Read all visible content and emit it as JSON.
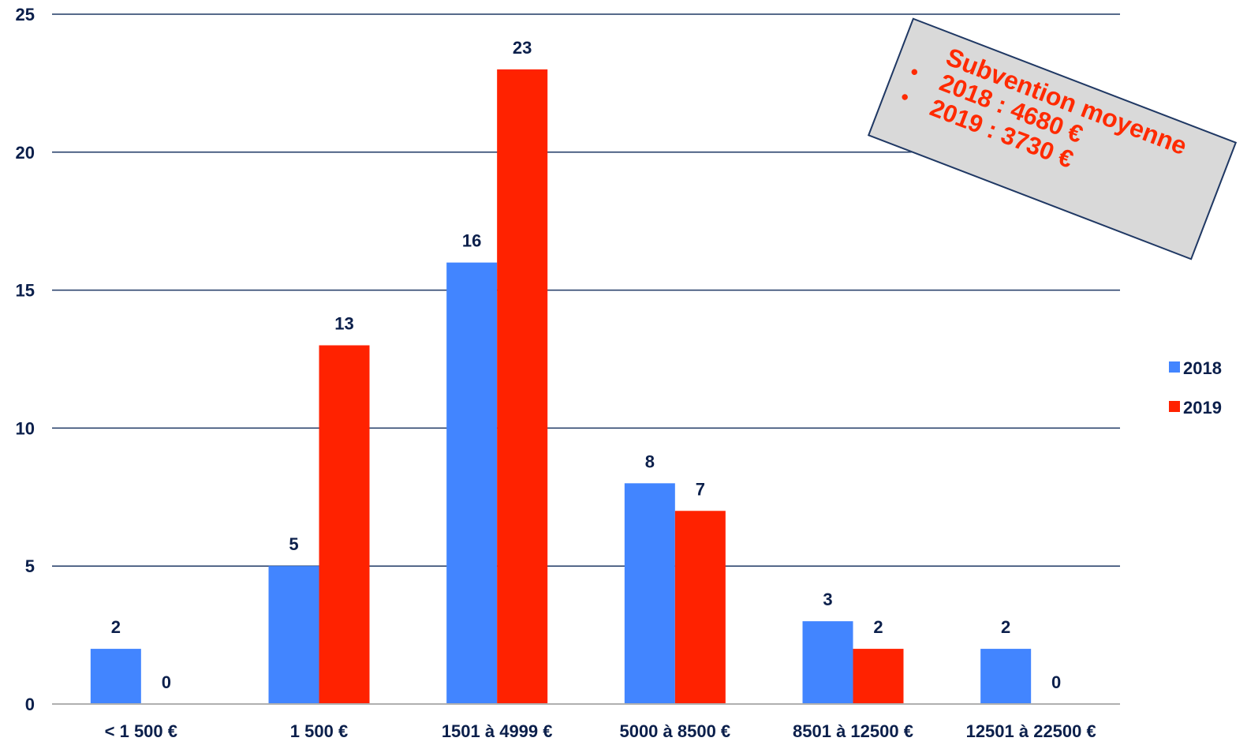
{
  "chart_data": {
    "type": "bar",
    "categories": [
      "< 1 500 €",
      "1 500 €",
      "1501 à 4999 €",
      "5000 à 8500 €",
      "8501 à 12500 €",
      "12501 à 22500 €"
    ],
    "series": [
      {
        "name": "2018",
        "values": [
          2,
          5,
          16,
          8,
          3,
          2
        ],
        "color": "#4285ff"
      },
      {
        "name": "2019",
        "values": [
          0,
          13,
          23,
          7,
          2,
          0
        ],
        "color": "#ff2200"
      }
    ],
    "ylim": [
      0,
      25
    ],
    "yticks": [
      0,
      5,
      10,
      15,
      20,
      25
    ],
    "grid": true,
    "legend_position": "right"
  },
  "annotation": {
    "title": "Subvention moyenne",
    "bullet": "•",
    "lines": [
      "2018 : 4680 €",
      "2019 : 3730 €"
    ],
    "color": "#ff2a00"
  }
}
